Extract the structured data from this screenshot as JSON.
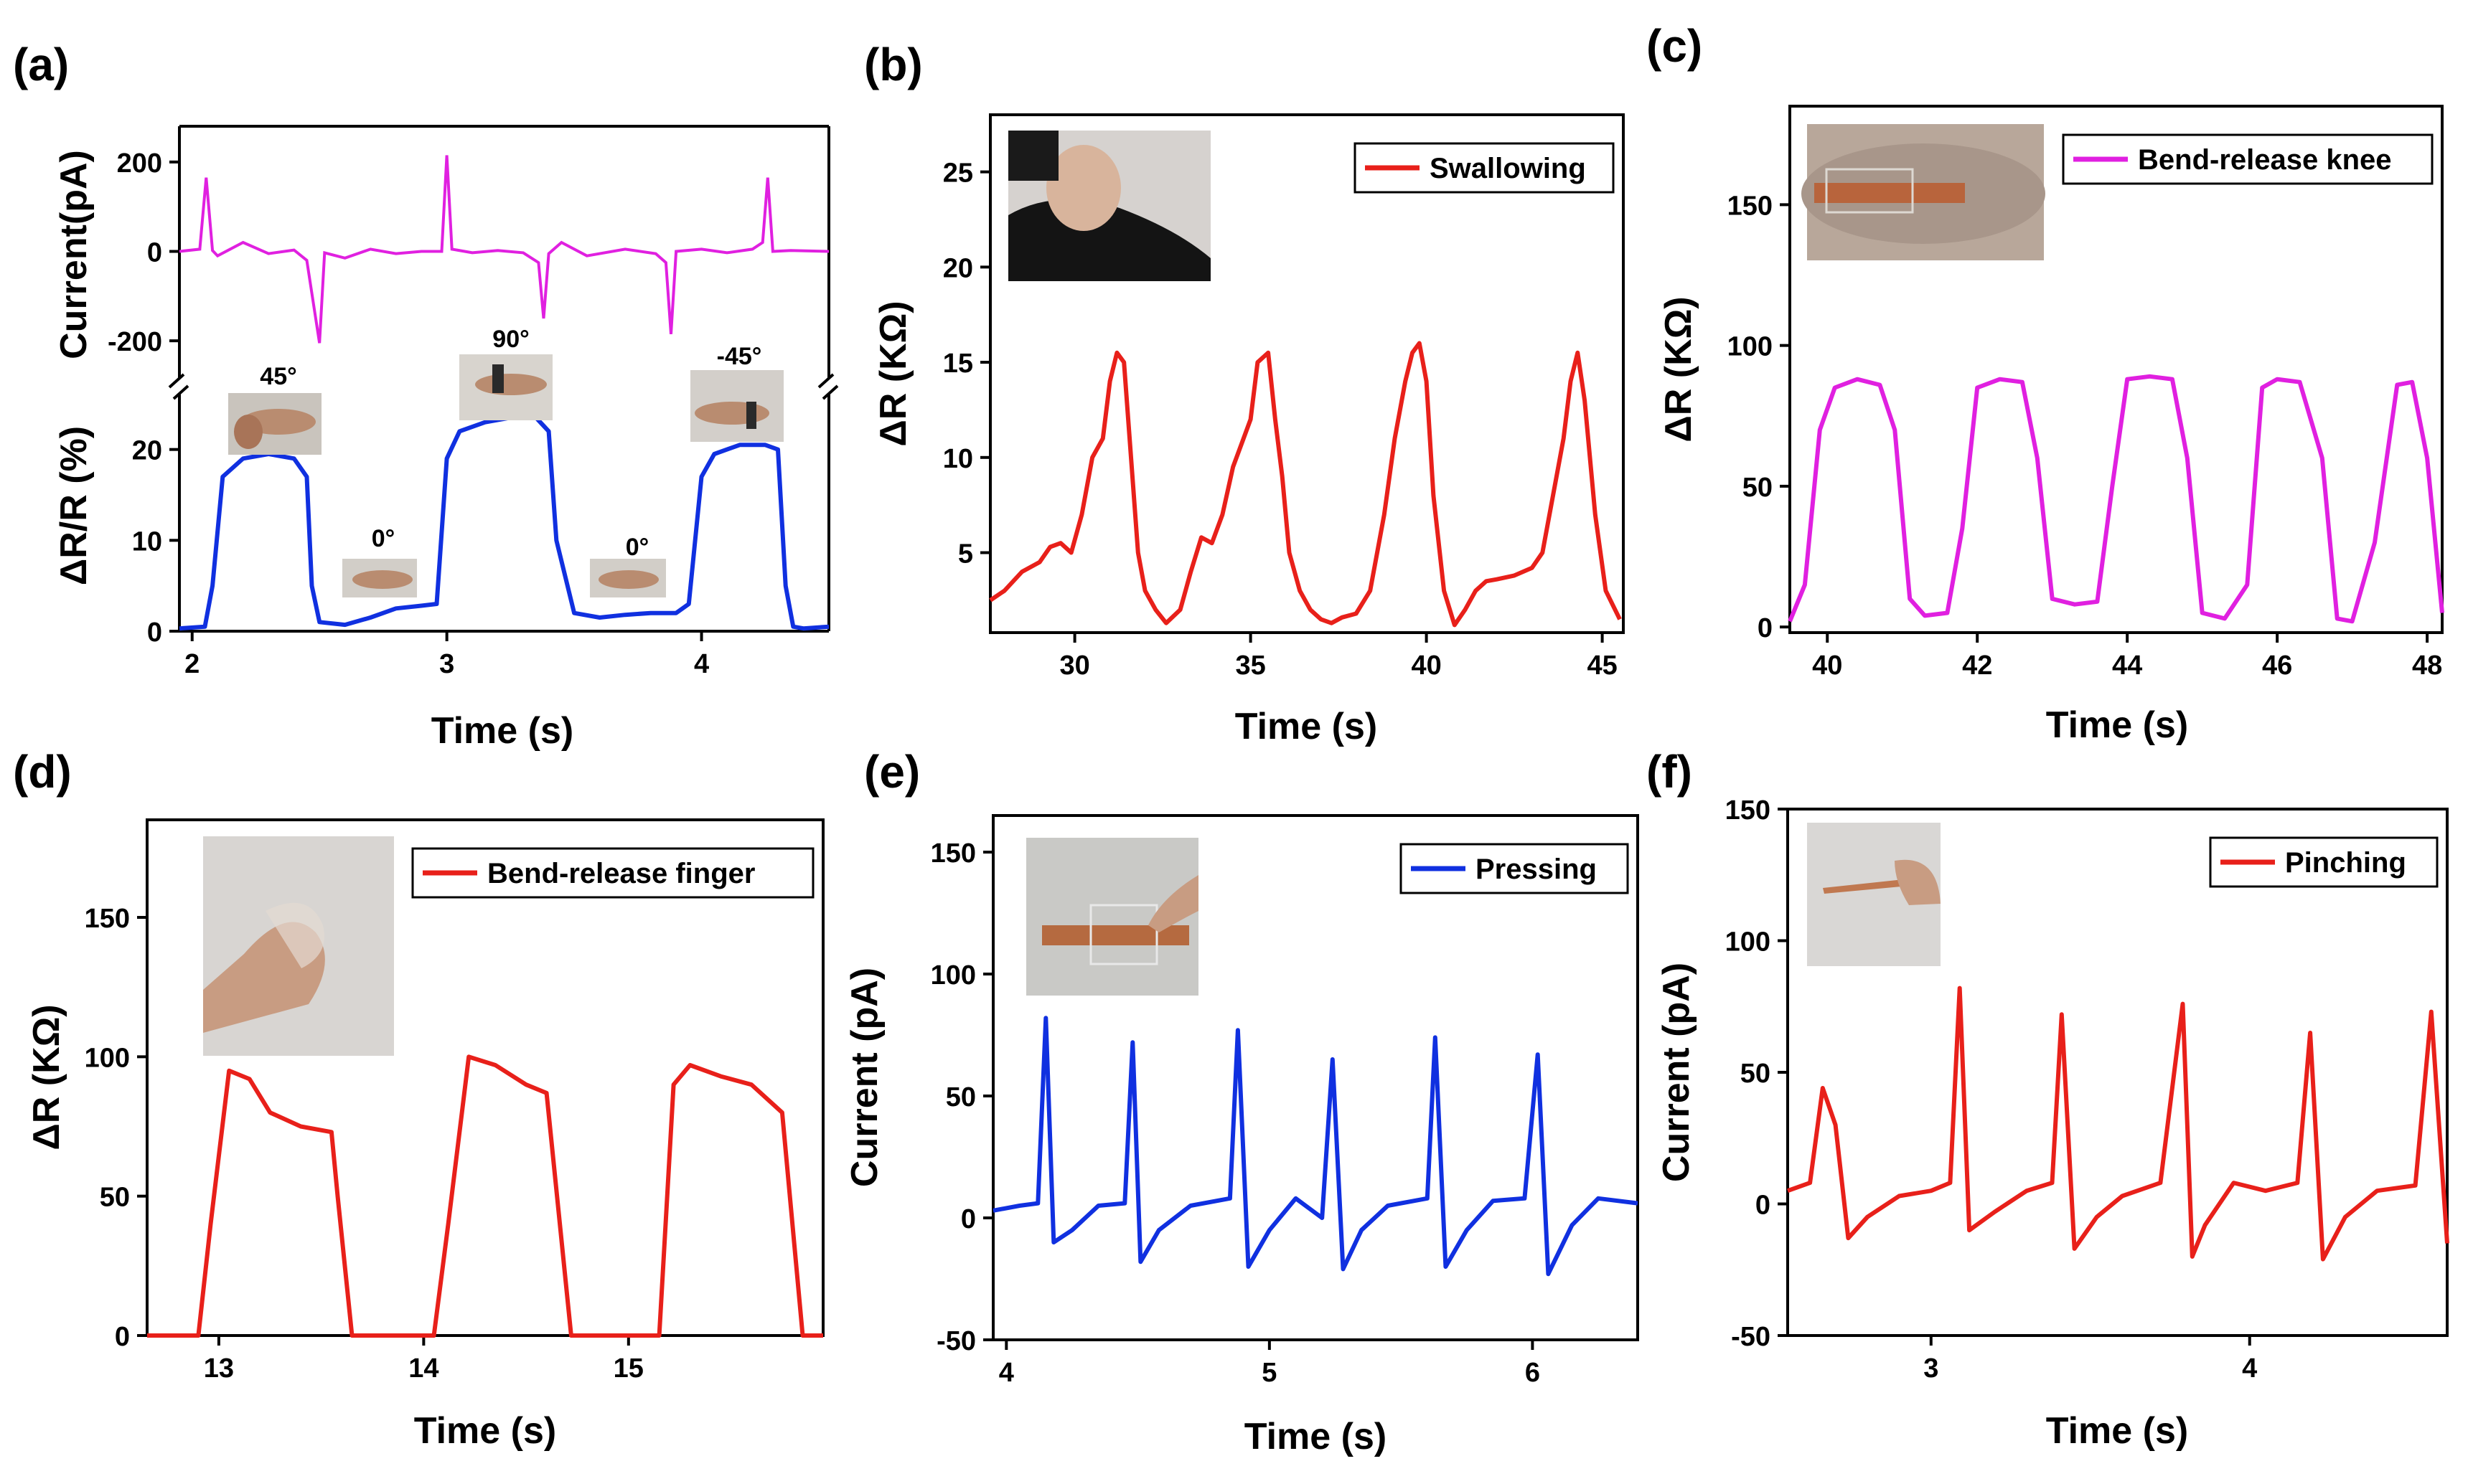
{
  "chart_data": [
    {
      "id": "a",
      "panel_label": "(a)",
      "type": "line",
      "xlabel": "Time (s)",
      "xlim": [
        1.95,
        4.5
      ],
      "xticks": [
        "2",
        "3",
        "4"
      ],
      "xtick_values": [
        2,
        3,
        4
      ],
      "top": {
        "ylabel": "Current(pA)",
        "ylim": [
          -280,
          280
        ],
        "yticks": [
          "-200",
          "0",
          "200"
        ],
        "ytick_values": [
          -200,
          0,
          200
        ],
        "color": "#e020e0",
        "series": [
          {
            "name": "Current",
            "x": [
              1.95,
              2.03,
              2.055,
              2.08,
              2.1,
              2.2,
              2.3,
              2.4,
              2.45,
              2.5,
              2.52,
              2.6,
              2.7,
              2.8,
              2.9,
              2.98,
              3.0,
              3.02,
              3.1,
              3.2,
              3.3,
              3.36,
              3.38,
              3.4,
              3.45,
              3.55,
              3.7,
              3.82,
              3.86,
              3.88,
              3.9,
              4.0,
              4.1,
              4.2,
              4.24,
              4.26,
              4.28,
              4.35,
              4.5
            ],
            "y": [
              0,
              5,
              165,
              2,
              -10,
              20,
              -5,
              3,
              -20,
              -205,
              -3,
              -15,
              5,
              -5,
              0,
              0,
              215,
              5,
              -3,
              2,
              -3,
              -25,
              -150,
              -5,
              20,
              -10,
              5,
              -5,
              -25,
              -185,
              0,
              5,
              -3,
              5,
              20,
              165,
              0,
              2,
              0
            ]
          }
        ]
      },
      "bottom": {
        "ylabel": "ΔR/R (%)",
        "ylim": [
          0,
          27
        ],
        "yticks": [
          "0",
          "10",
          "20"
        ],
        "ytick_values": [
          0,
          10,
          20
        ],
        "color": "#1030e0",
        "series": [
          {
            "name": "ΔR/R",
            "x": [
              1.95,
              2.05,
              2.08,
              2.12,
              2.2,
              2.3,
              2.4,
              2.45,
              2.47,
              2.5,
              2.6,
              2.7,
              2.8,
              2.9,
              2.96,
              3.0,
              3.05,
              3.15,
              3.25,
              3.35,
              3.4,
              3.43,
              3.5,
              3.6,
              3.7,
              3.8,
              3.9,
              3.95,
              4.0,
              4.05,
              4.15,
              4.25,
              4.3,
              4.33,
              4.36,
              4.4,
              4.5
            ],
            "y": [
              0.3,
              0.5,
              5,
              17,
              19,
              19.5,
              19,
              17,
              5,
              1,
              0.7,
              1.5,
              2.5,
              2.8,
              3,
              19,
              22,
              23,
              23.5,
              23.5,
              22,
              10,
              2,
              1.5,
              1.8,
              2,
              2,
              3,
              17,
              19.5,
              20.5,
              20.5,
              20,
              5,
              0.5,
              0.3,
              0.5
            ]
          }
        ],
        "annotations": [
          "45°",
          "0°",
          "90°",
          "0°",
          "-45°"
        ]
      }
    },
    {
      "id": "b",
      "panel_label": "(b)",
      "type": "line",
      "xlabel": "Time (s)",
      "ylabel": "ΔR (KΩ)",
      "xlim": [
        27.6,
        45.6
      ],
      "ylim": [
        0.8,
        28
      ],
      "xticks": [
        "30",
        "35",
        "40",
        "45"
      ],
      "xtick_values": [
        30,
        35,
        40,
        45
      ],
      "yticks": [
        "5",
        "10",
        "15",
        "20",
        "25"
      ],
      "ytick_values": [
        5,
        10,
        15,
        20,
        25
      ],
      "color": "#e8201a",
      "legend": "Swallowing",
      "legend_position": "top-right",
      "series": [
        {
          "name": "Swallowing",
          "x": [
            27.6,
            28.0,
            28.5,
            29.0,
            29.3,
            29.6,
            29.9,
            30.2,
            30.5,
            30.8,
            31.0,
            31.2,
            31.4,
            31.6,
            31.8,
            32.0,
            32.3,
            32.6,
            33.0,
            33.3,
            33.6,
            33.9,
            34.2,
            34.5,
            34.8,
            35.0,
            35.2,
            35.5,
            35.7,
            35.9,
            36.1,
            36.4,
            36.7,
            37.0,
            37.3,
            37.6,
            38.0,
            38.4,
            38.8,
            39.1,
            39.4,
            39.6,
            39.8,
            40.0,
            40.2,
            40.5,
            40.8,
            41.1,
            41.4,
            41.7,
            42.0,
            42.5,
            43.0,
            43.3,
            43.6,
            43.9,
            44.1,
            44.3,
            44.5,
            44.8,
            45.1,
            45.5
          ],
          "y": [
            2.5,
            3,
            4,
            4.5,
            5.3,
            5.5,
            5,
            7,
            10,
            11,
            14,
            15.5,
            15,
            10,
            5,
            3,
            2,
            1.3,
            2,
            4,
            5.8,
            5.5,
            7,
            9.5,
            11,
            12,
            15,
            15.5,
            12,
            9,
            5,
            3,
            2,
            1.5,
            1.3,
            1.6,
            1.8,
            3,
            7,
            11,
            14,
            15.5,
            16,
            14,
            8,
            3,
            1.2,
            2,
            3,
            3.5,
            3.6,
            3.8,
            4.2,
            5,
            8,
            11,
            14,
            15.5,
            13,
            7,
            3,
            1.5
          ]
        }
      ]
    },
    {
      "id": "c",
      "panel_label": "(c)",
      "type": "line",
      "xlabel": "Time (s)",
      "ylabel": "ΔR (KΩ)",
      "xlim": [
        39.5,
        48.2
      ],
      "ylim": [
        -2,
        185
      ],
      "xticks": [
        "40",
        "42",
        "44",
        "46",
        "48"
      ],
      "xtick_values": [
        40,
        42,
        44,
        46,
        48
      ],
      "yticks": [
        "0",
        "50",
        "100",
        "150"
      ],
      "ytick_values": [
        0,
        50,
        100,
        150
      ],
      "color": "#e020e0",
      "legend": "Bend-release knee",
      "legend_position": "top-right",
      "series": [
        {
          "name": "Bend-release knee",
          "x": [
            39.5,
            39.7,
            39.9,
            40.1,
            40.4,
            40.7,
            40.9,
            41.1,
            41.3,
            41.6,
            41.8,
            42.0,
            42.3,
            42.6,
            42.8,
            43.0,
            43.3,
            43.6,
            43.8,
            44.0,
            44.3,
            44.6,
            44.8,
            45.0,
            45.3,
            45.6,
            45.8,
            46.0,
            46.3,
            46.6,
            46.8,
            47.0,
            47.3,
            47.6,
            47.8,
            48.0,
            48.2
          ],
          "y": [
            2,
            15,
            70,
            85,
            88,
            86,
            70,
            10,
            4,
            5,
            35,
            85,
            88,
            87,
            60,
            10,
            8,
            9,
            50,
            88,
            89,
            88,
            60,
            5,
            3,
            15,
            85,
            88,
            87,
            60,
            3,
            2,
            30,
            86,
            87,
            60,
            5
          ]
        }
      ]
    },
    {
      "id": "d",
      "panel_label": "(d)",
      "type": "line",
      "xlabel": "Time (s)",
      "ylabel": "ΔR (KΩ)",
      "xlim": [
        12.65,
        15.95
      ],
      "ylim": [
        0,
        185
      ],
      "xticks": [
        "13",
        "14",
        "15"
      ],
      "xtick_values": [
        13,
        14,
        15
      ],
      "yticks": [
        "0",
        "50",
        "100",
        "150"
      ],
      "ytick_values": [
        0,
        50,
        100,
        150
      ],
      "color": "#e8201a",
      "legend": "Bend-release finger",
      "legend_position": "top-right",
      "series": [
        {
          "name": "Bend-release finger",
          "x": [
            12.65,
            12.9,
            12.96,
            13.05,
            13.15,
            13.25,
            13.4,
            13.55,
            13.58,
            13.65,
            14.05,
            14.12,
            14.22,
            14.35,
            14.5,
            14.6,
            14.72,
            14.8,
            15.15,
            15.22,
            15.3,
            15.45,
            15.6,
            15.75,
            15.85,
            15.95
          ],
          "y": [
            0,
            0,
            40,
            95,
            92,
            80,
            75,
            73,
            50,
            0,
            0,
            40,
            100,
            97,
            90,
            87,
            0,
            0,
            0,
            90,
            97,
            93,
            90,
            80,
            0,
            0
          ]
        }
      ]
    },
    {
      "id": "e",
      "panel_label": "(e)",
      "type": "line",
      "xlabel": "Time (s)",
      "ylabel": "Current (pA)",
      "xlim": [
        3.95,
        6.4
      ],
      "ylim": [
        -50,
        165
      ],
      "xticks": [
        "4",
        "5",
        "6"
      ],
      "xtick_values": [
        4,
        5,
        6
      ],
      "yticks": [
        "-50",
        "0",
        "50",
        "100",
        "150"
      ],
      "ytick_values": [
        -50,
        0,
        50,
        100,
        150
      ],
      "color": "#1030e0",
      "legend": "Pressing",
      "legend_position": "top-right",
      "series": [
        {
          "name": "Pressing",
          "x": [
            3.95,
            4.05,
            4.12,
            4.15,
            4.18,
            4.25,
            4.35,
            4.45,
            4.48,
            4.51,
            4.58,
            4.7,
            4.85,
            4.88,
            4.92,
            5.0,
            5.1,
            5.2,
            5.24,
            5.28,
            5.35,
            5.45,
            5.6,
            5.63,
            5.67,
            5.75,
            5.85,
            5.97,
            6.02,
            6.06,
            6.15,
            6.25,
            6.4
          ],
          "y": [
            3,
            5,
            6,
            82,
            -10,
            -5,
            5,
            6,
            72,
            -18,
            -5,
            5,
            8,
            77,
            -20,
            -5,
            8,
            0,
            65,
            -21,
            -5,
            5,
            8,
            74,
            -20,
            -5,
            7,
            8,
            67,
            -23,
            -3,
            8,
            6
          ]
        }
      ]
    },
    {
      "id": "f",
      "panel_label": "(f)",
      "type": "line",
      "xlabel": "Time (s)",
      "ylabel": "Current (pA)",
      "xlim": [
        2.55,
        4.62
      ],
      "ylim": [
        -50,
        150
      ],
      "xticks": [
        "3",
        "4"
      ],
      "xtick_values": [
        3,
        4
      ],
      "yticks": [
        "-50",
        "0",
        "50",
        "100",
        "150"
      ],
      "ytick_values": [
        -50,
        0,
        50,
        100,
        150
      ],
      "color": "#e8201a",
      "legend": "Pinching",
      "legend_position": "top-right",
      "series": [
        {
          "name": "Pinching",
          "x": [
            2.55,
            2.62,
            2.66,
            2.7,
            2.74,
            2.8,
            2.9,
            3.0,
            3.06,
            3.09,
            3.12,
            3.2,
            3.3,
            3.38,
            3.41,
            3.45,
            3.52,
            3.6,
            3.72,
            3.79,
            3.82,
            3.86,
            3.95,
            4.05,
            4.15,
            4.19,
            4.23,
            4.3,
            4.4,
            4.52,
            4.57,
            4.62
          ],
          "y": [
            5,
            8,
            44,
            30,
            -13,
            -5,
            3,
            5,
            8,
            82,
            -10,
            -3,
            5,
            8,
            72,
            -17,
            -5,
            3,
            8,
            76,
            -20,
            -8,
            8,
            5,
            8,
            65,
            -21,
            -5,
            5,
            7,
            73,
            -15
          ]
        }
      ]
    }
  ]
}
